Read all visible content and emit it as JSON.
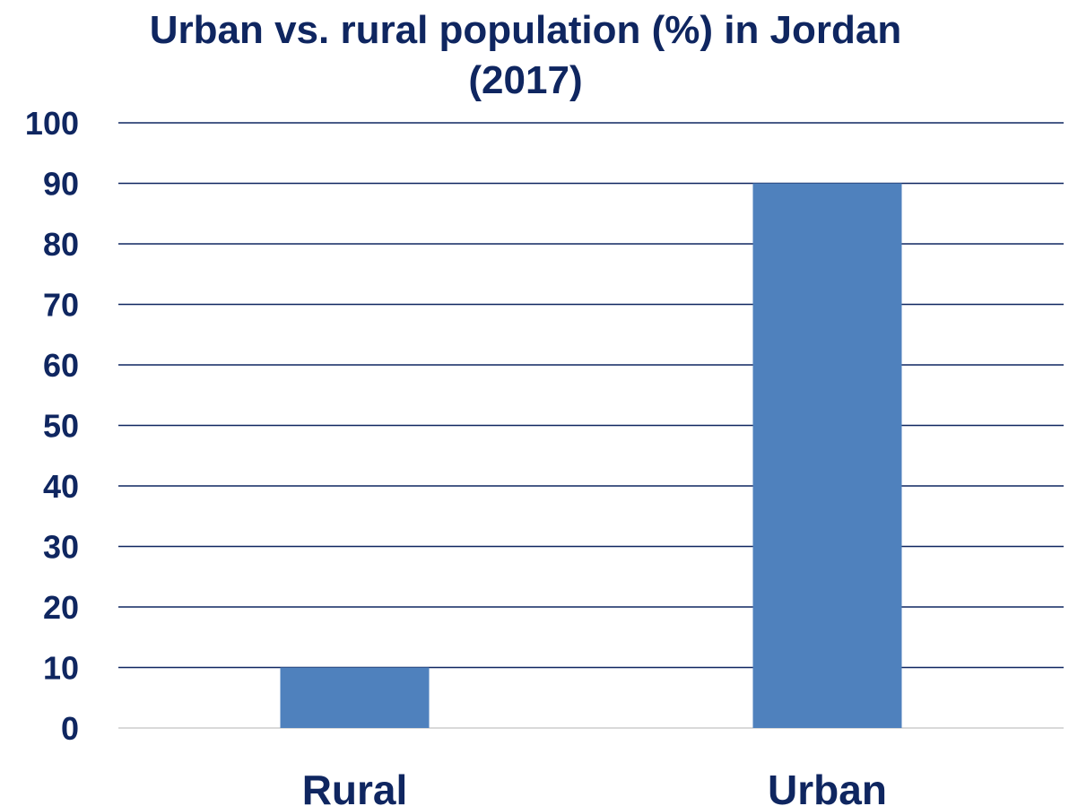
{
  "chart_data": {
    "type": "bar",
    "title_line1": "Urban vs. rural population (%) in Jordan",
    "title_line2": "(2017)",
    "categories": [
      "Rural",
      "Urban"
    ],
    "values": [
      10,
      90
    ],
    "ylim": [
      0,
      100
    ],
    "yticks": [
      "0",
      "10",
      "20",
      "30",
      "40",
      "50",
      "60",
      "70",
      "80",
      "90",
      "100"
    ],
    "grid": true,
    "legend": "none",
    "bar_color": "#4f81bd",
    "grid_color": "#0f2660",
    "text_color": "#0f2660"
  }
}
